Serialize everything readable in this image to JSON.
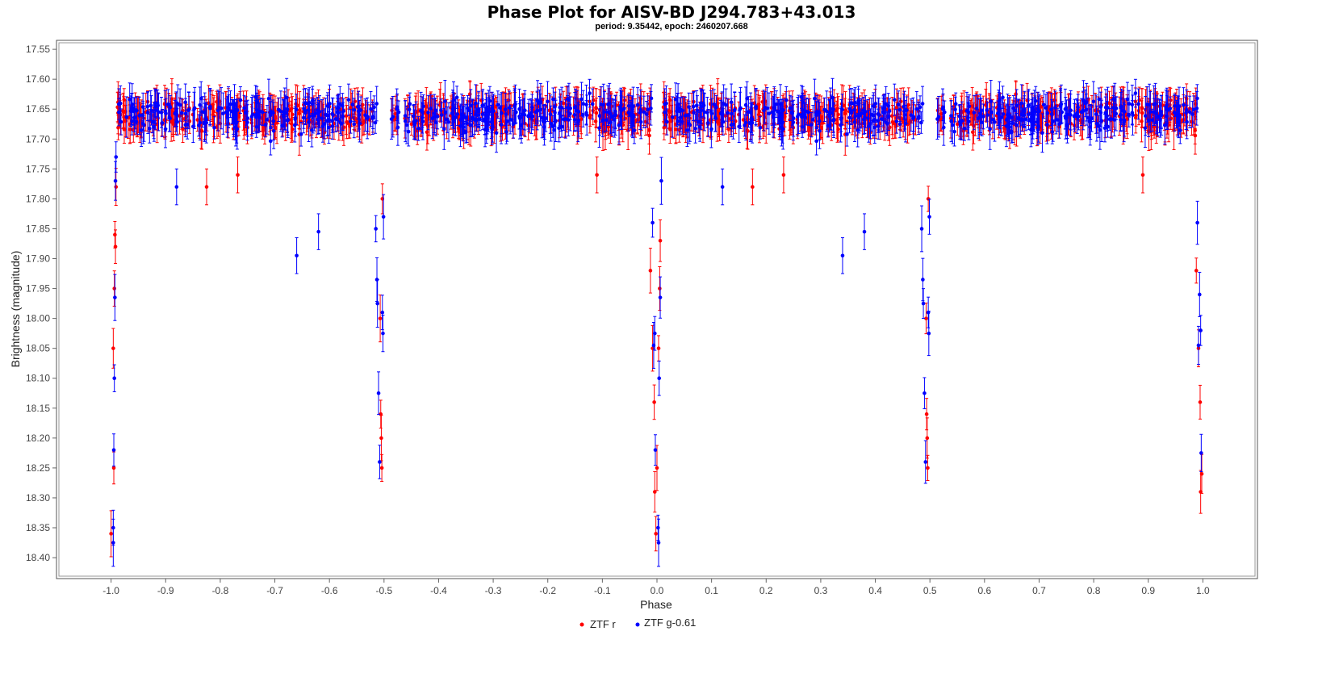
{
  "chart_data": {
    "type": "scatter",
    "title": "Phase Plot for AISV-BD J294.783+43.013",
    "subtitle": "period: 9.35442, epoch: 2460207.668",
    "xlabel": "Phase",
    "ylabel": "Brightness (magnitude)",
    "xlim": [
      -1.1,
      1.1
    ],
    "ylim": [
      18.435,
      17.535
    ],
    "y_inverted": true,
    "x_ticks": [
      -1.0,
      -0.9,
      -0.8,
      -0.7,
      -0.6,
      -0.5,
      -0.4,
      -0.3,
      -0.2,
      -0.1,
      0.0,
      0.1,
      0.2,
      0.3,
      0.4,
      0.5,
      0.6,
      0.7,
      0.8,
      0.9,
      1.0
    ],
    "x_tick_labels": [
      "-1.0",
      "-0.9",
      "-0.8",
      "-0.7",
      "-0.6",
      "-0.5",
      "-0.4",
      "-0.3",
      "-0.2",
      "-0.1",
      "0.0",
      "0.1",
      "0.2",
      "0.3",
      "0.4",
      "0.5",
      "0.6",
      "0.7",
      "0.8",
      "0.9",
      "1.0"
    ],
    "y_ticks": [
      17.55,
      17.6,
      17.65,
      17.7,
      17.75,
      17.8,
      17.85,
      17.9,
      17.95,
      18.0,
      18.05,
      18.1,
      18.15,
      18.2,
      18.25,
      18.3,
      18.35,
      18.4
    ],
    "y_tick_labels": [
      "17.55",
      "17.60",
      "17.65",
      "17.70",
      "17.75",
      "17.80",
      "17.85",
      "17.90",
      "17.95",
      "18.00",
      "18.05",
      "18.10",
      "18.15",
      "18.20",
      "18.25",
      "18.30",
      "18.35",
      "18.40"
    ],
    "grid": false,
    "legend_position": "bottom-center",
    "baseline": {
      "mean_magnitude": 17.66,
      "scatter": 0.03,
      "typical_error": 0.025,
      "points_per_series_per_cycle": 450
    },
    "eclipses": [
      {
        "phase": 0.0,
        "depth_magnitude": 18.38,
        "half_width_phase": 0.014,
        "label": "primary"
      },
      {
        "phase": 0.5,
        "depth_magnitude": 18.26,
        "half_width_phase": 0.014,
        "label": "secondary"
      }
    ],
    "series": [
      {
        "name": "ZTF r",
        "color": "#ff0000",
        "eclipse_points": [
          [
            -1.0,
            18.36
          ],
          [
            -0.995,
            18.25
          ],
          [
            -0.996,
            18.05
          ],
          [
            -0.994,
            17.95
          ],
          [
            -0.993,
            17.86
          ],
          [
            -0.992,
            17.88
          ],
          [
            -0.991,
            17.78
          ],
          [
            -0.507,
            18.0
          ],
          [
            -0.506,
            18.16
          ],
          [
            -0.505,
            18.2
          ],
          [
            -0.504,
            18.25
          ],
          [
            -0.503,
            17.8
          ],
          [
            -0.012,
            17.92
          ],
          [
            -0.008,
            18.05
          ],
          [
            -0.005,
            18.14
          ],
          [
            -0.004,
            18.29
          ],
          [
            -0.002,
            18.36
          ],
          [
            0.0,
            18.25
          ],
          [
            0.003,
            18.05
          ],
          [
            0.005,
            17.95
          ],
          [
            0.006,
            17.87
          ],
          [
            0.493,
            18.0
          ],
          [
            0.494,
            18.16
          ],
          [
            0.495,
            18.2
          ],
          [
            0.496,
            18.25
          ],
          [
            0.497,
            17.8
          ],
          [
            0.988,
            17.92
          ],
          [
            0.992,
            18.05
          ],
          [
            0.995,
            18.14
          ],
          [
            0.996,
            18.29
          ],
          [
            0.998,
            18.26
          ]
        ],
        "outliers": [
          [
            -0.825,
            17.78
          ],
          [
            -0.768,
            17.76
          ],
          [
            -0.11,
            17.76
          ],
          [
            0.175,
            17.78
          ],
          [
            0.232,
            17.76
          ],
          [
            0.89,
            17.76
          ]
        ]
      },
      {
        "name": "ZTF g-0.61",
        "color": "#0000ff",
        "eclipse_points": [
          [
            -0.996,
            18.375
          ],
          [
            -0.996,
            18.35
          ],
          [
            -0.995,
            18.22
          ],
          [
            -0.994,
            18.1
          ],
          [
            -0.993,
            17.965
          ],
          [
            -0.992,
            17.77
          ],
          [
            -0.991,
            17.73
          ],
          [
            -0.515,
            17.85
          ],
          [
            -0.513,
            17.935
          ],
          [
            -0.512,
            17.975
          ],
          [
            -0.51,
            18.125
          ],
          [
            -0.508,
            18.24
          ],
          [
            -0.503,
            17.99
          ],
          [
            -0.502,
            18.025
          ],
          [
            -0.501,
            17.83
          ],
          [
            -0.008,
            17.84
          ],
          [
            -0.006,
            18.045
          ],
          [
            -0.004,
            18.025
          ],
          [
            -0.003,
            18.22
          ],
          [
            0.002,
            18.35
          ],
          [
            0.003,
            18.375
          ],
          [
            0.004,
            18.1
          ],
          [
            0.006,
            17.965
          ],
          [
            0.008,
            17.77
          ],
          [
            0.485,
            17.85
          ],
          [
            0.487,
            17.935
          ],
          [
            0.488,
            17.975
          ],
          [
            0.49,
            18.125
          ],
          [
            0.492,
            18.24
          ],
          [
            0.497,
            17.99
          ],
          [
            0.498,
            18.025
          ],
          [
            0.499,
            17.83
          ],
          [
            0.99,
            17.84
          ],
          [
            0.992,
            18.045
          ],
          [
            0.994,
            17.96
          ],
          [
            0.996,
            18.02
          ],
          [
            0.997,
            18.225
          ]
        ],
        "outliers": [
          [
            -0.88,
            17.78
          ],
          [
            -0.66,
            17.895
          ],
          [
            -0.62,
            17.855
          ],
          [
            0.12,
            17.78
          ],
          [
            0.34,
            17.895
          ],
          [
            0.38,
            17.855
          ]
        ]
      }
    ]
  }
}
